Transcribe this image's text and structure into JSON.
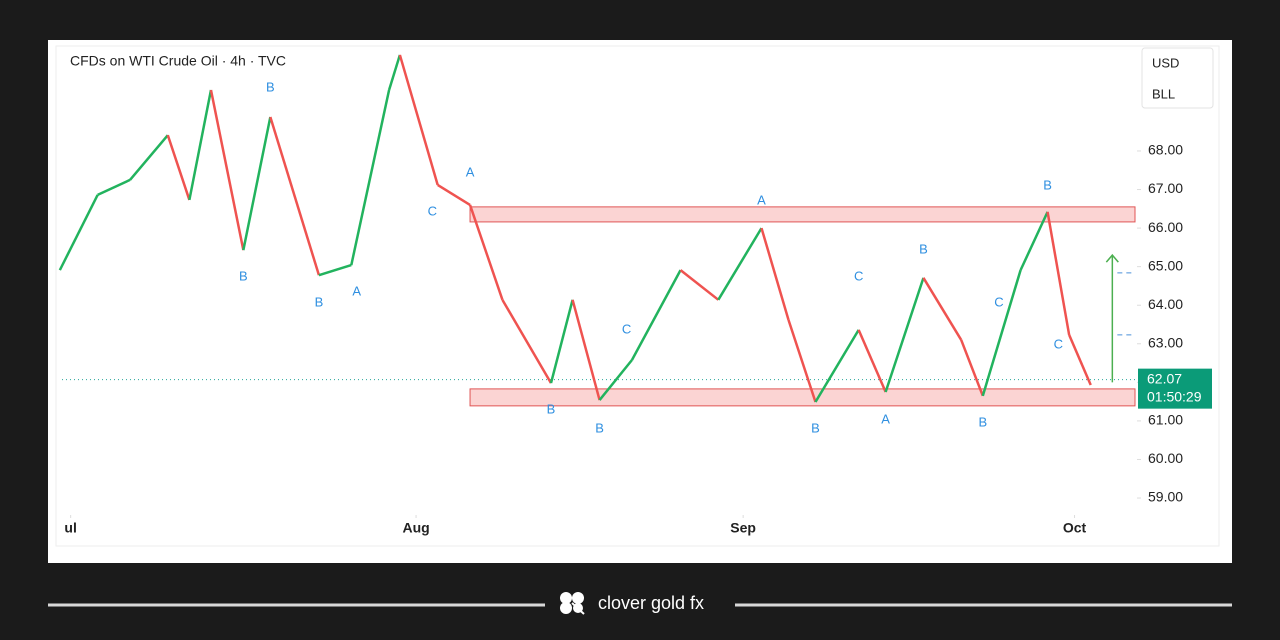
{
  "header": {
    "title": "CFDs on WTI Crude Oil · 4h · TVC",
    "legend": [
      "USD",
      "BLL"
    ]
  },
  "chart_data": {
    "type": "line",
    "series": [
      {
        "name": "WTI",
        "up_color": "#22b35e",
        "down_color": "#ef5350",
        "x": [
          -1,
          2.5,
          5.5,
          9,
          11,
          13,
          16,
          18.5,
          23,
          26,
          29.5,
          30.5,
          34,
          37,
          40,
          44.5,
          46.5,
          49,
          52,
          56.5,
          60,
          64,
          66.5,
          69,
          73,
          75.5,
          79,
          82.5,
          84.5,
          88,
          90.5,
          92.5,
          94.5
        ],
        "values": [
          64.91,
          66.86,
          67.25,
          68.41,
          66.73,
          69.58,
          65.43,
          68.88,
          64.78,
          65.04,
          69.58,
          70.49,
          67.12,
          66.6,
          64.14,
          61.98,
          64.14,
          61.54,
          62.58,
          64.91,
          64.14,
          66.0,
          63.62,
          61.49,
          63.36,
          61.75,
          64.71,
          63.1,
          61.65,
          64.91,
          66.42,
          63.23,
          61.93
        ]
      }
    ],
    "xlim": [
      -0.8,
      98.6
    ],
    "ylim": [
      58.56,
      70.67
    ],
    "xticks": [
      {
        "value": 0,
        "label": "ul"
      },
      {
        "value": 32,
        "label": "Aug"
      },
      {
        "value": 62.3,
        "label": "Sep"
      },
      {
        "value": 93,
        "label": "Oct"
      }
    ],
    "yticks": [
      {
        "value": 59,
        "label": "59.00"
      },
      {
        "value": 60,
        "label": "60.00"
      },
      {
        "value": 61,
        "label": "61.00"
      },
      {
        "value": 62,
        "label": "62.00"
      },
      {
        "value": 63,
        "label": "63.00"
      },
      {
        "value": 64,
        "label": "64.00"
      },
      {
        "value": 65,
        "label": "65.00"
      },
      {
        "value": 66,
        "label": "66.00"
      },
      {
        "value": 67,
        "label": "67.00"
      },
      {
        "value": 68,
        "label": "68.00"
      }
    ],
    "zones": [
      {
        "x_start": 37,
        "low": 66.16,
        "high": 66.55
      },
      {
        "x_start": 37,
        "low": 61.39,
        "high": 61.83
      }
    ],
    "levels": [
      64.84,
      63.23
    ],
    "arrow": {
      "x": 96.5,
      "from": 62.0,
      "to": 65.3
    },
    "last_price": 62.07,
    "last_price_label": "62.07",
    "countdown": "01:50:29",
    "annotations": [
      {
        "text": "B",
        "x": 18.5,
        "y": 69.63
      },
      {
        "text": "B",
        "x": 16,
        "y": 64.73
      },
      {
        "text": "B",
        "x": 23,
        "y": 64.06
      },
      {
        "text": "A",
        "x": 26.5,
        "y": 64.34
      },
      {
        "text": "C",
        "x": 33.5,
        "y": 66.42
      },
      {
        "text": "A",
        "x": 37,
        "y": 67.43
      },
      {
        "text": "B",
        "x": 44.5,
        "y": 61.28
      },
      {
        "text": "B",
        "x": 49,
        "y": 60.79
      },
      {
        "text": "C",
        "x": 51.5,
        "y": 63.36
      },
      {
        "text": "A",
        "x": 64,
        "y": 66.7
      },
      {
        "text": "B",
        "x": 69,
        "y": 60.79
      },
      {
        "text": "C",
        "x": 73,
        "y": 64.73
      },
      {
        "text": "A",
        "x": 75.5,
        "y": 61.02
      },
      {
        "text": "B",
        "x": 79,
        "y": 65.43
      },
      {
        "text": "B",
        "x": 84.5,
        "y": 60.95
      },
      {
        "text": "C",
        "x": 86,
        "y": 64.06
      },
      {
        "text": "B",
        "x": 90.5,
        "y": 67.09
      },
      {
        "text": "C",
        "x": 91.5,
        "y": 62.97
      }
    ]
  },
  "footer": {
    "brand": "clover gold fx"
  }
}
